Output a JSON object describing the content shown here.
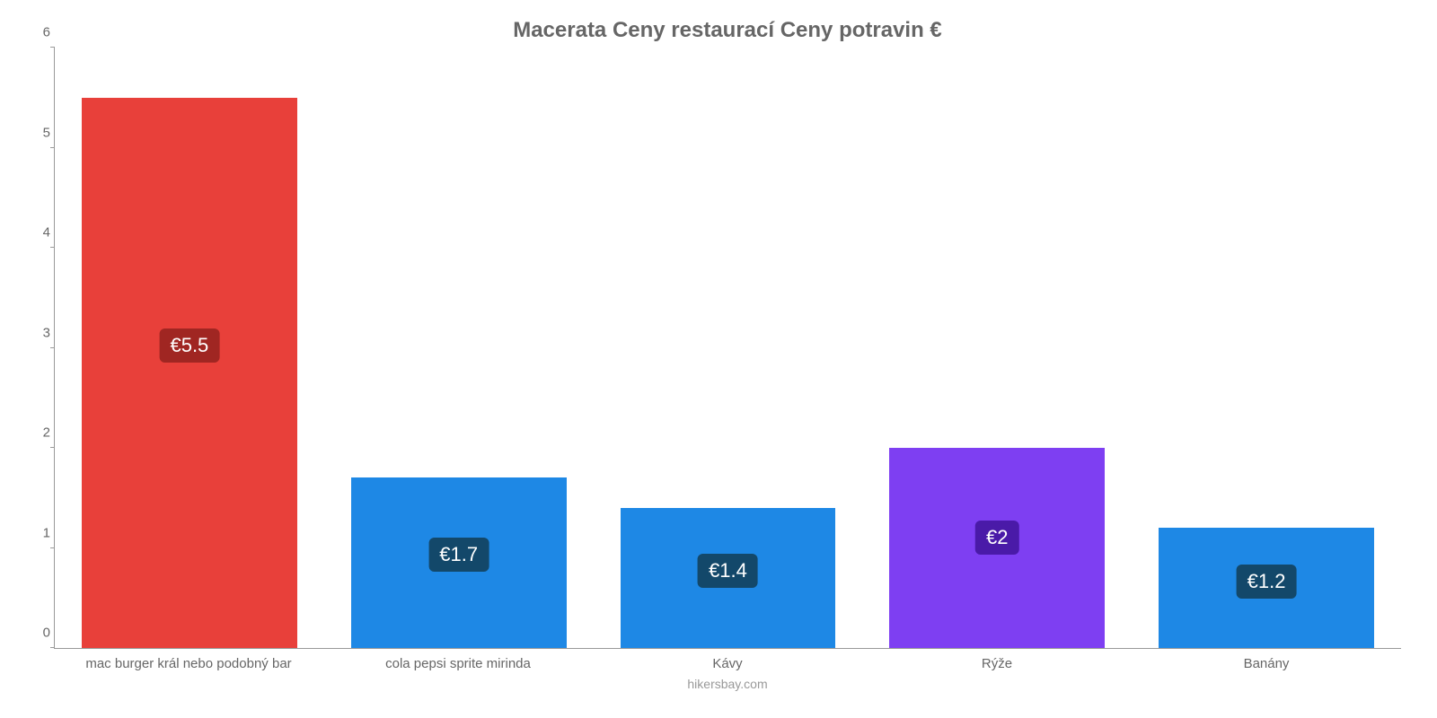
{
  "chart": {
    "type": "bar",
    "title": "Macerata Ceny restaurací Ceny potravin €",
    "title_fontsize": 24,
    "title_color": "#666666",
    "background_color": "#ffffff",
    "axis_color": "#999999",
    "label_color": "#666666",
    "label_fontsize": 15,
    "value_badge_fontsize": 22,
    "ylim_min": 0,
    "ylim_max": 6,
    "ytick_step": 1,
    "yticks": [
      0,
      1,
      2,
      3,
      4,
      5,
      6
    ],
    "bar_width_pct": 80,
    "categories": [
      "mac burger král nebo podobný bar",
      "cola pepsi sprite mirinda",
      "Kávy",
      "Rýže",
      "Banány"
    ],
    "values": [
      5.5,
      1.7,
      1.4,
      2,
      1.2
    ],
    "value_labels": [
      "€5.5",
      "€1.7",
      "€1.4",
      "€2",
      "€1.2"
    ],
    "bar_colors": [
      "#e8403a",
      "#1e88e5",
      "#1e88e5",
      "#7e3ff2",
      "#1e88e5"
    ],
    "badge_colors": [
      "#a02622",
      "#13486a",
      "#13486a",
      "#4a1aa8",
      "#13486a"
    ],
    "badge_text_color": "#ffffff",
    "attribution": "hikersbay.com",
    "attribution_color": "#999999"
  }
}
